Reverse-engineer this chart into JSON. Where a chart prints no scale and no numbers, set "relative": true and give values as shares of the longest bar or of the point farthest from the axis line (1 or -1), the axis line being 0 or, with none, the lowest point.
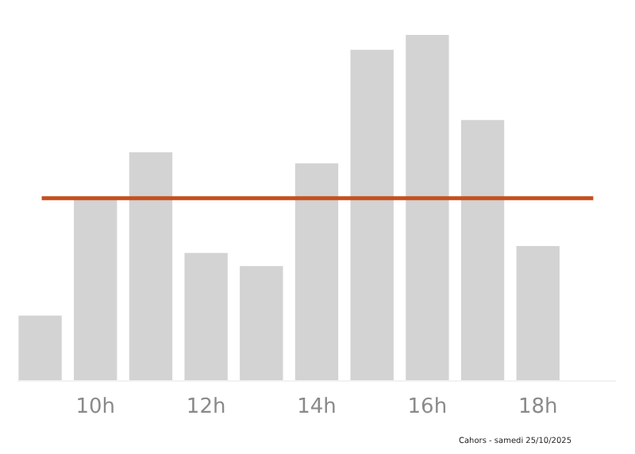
{
  "chart_data": {
    "type": "bar",
    "relative": true,
    "categories": [
      null,
      "10h",
      null,
      "12h",
      null,
      "14h",
      null,
      "16h",
      null,
      "18h",
      null
    ],
    "values": [
      0.189,
      0.525,
      0.661,
      0.37,
      0.332,
      0.629,
      0.957,
      1,
      0.754,
      0.39,
      0
    ],
    "color": "#d3d3d3",
    "ref_lines": [
      {
        "axis": "y",
        "value": 0.528,
        "color": "#c4501e"
      }
    ],
    "annotations": [
      "Cahors - samedi 25/10/2025"
    ]
  }
}
